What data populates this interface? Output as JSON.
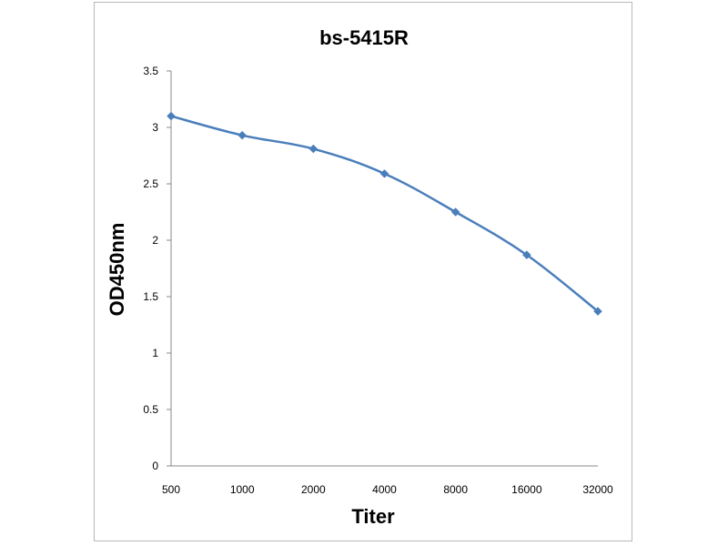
{
  "chart_data": {
    "type": "line",
    "title": "bs-5415R",
    "xlabel": "Titer",
    "ylabel": "OD450nm",
    "categories": [
      "500",
      "1000",
      "2000",
      "4000",
      "8000",
      "16000",
      "32000"
    ],
    "series": [
      {
        "values": [
          3.1,
          2.93,
          2.81,
          2.59,
          2.25,
          1.87,
          1.37
        ]
      }
    ],
    "ylim": [
      0,
      3.5
    ],
    "yticks": [
      "0",
      "0.5",
      "1",
      "1.5",
      "2",
      "2.5",
      "3",
      "3.5"
    ],
    "grid": false,
    "legend": "none",
    "line_color": "#4a7ebb"
  }
}
